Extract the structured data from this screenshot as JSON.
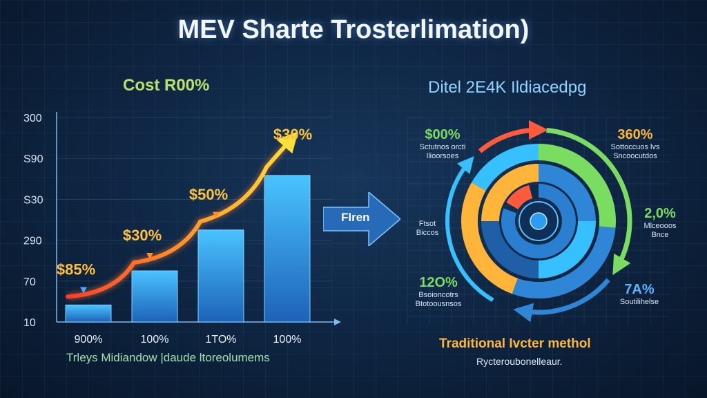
{
  "title": "MEV Sharte Trosterlimation)",
  "left_panel": {
    "subtitle": "Cost R00%",
    "caption": "Trleys Midiandow |daude ltoreolumems"
  },
  "center_arrow": {
    "label": "Flren"
  },
  "right_panel": {
    "subtitle": "Ditel 2E4K Ildiacedpg",
    "caption": "Traditional Ivcter methol",
    "subcaption": "Rycteroubonelleaur.",
    "labels": [
      {
        "pct": "$00%",
        "desc": "Sctutnos orcti\nllioorsoes",
        "color": "#7bdc62"
      },
      {
        "pct": "360%",
        "desc": "Sottoccuos lvs\nSncoocutdos",
        "color": "#ffb43a"
      },
      {
        "pct": "2,0%",
        "desc": "Mlceooos\nBnce",
        "color": "#7bdc62"
      },
      {
        "pct": "7A%",
        "desc": "Soutilihelse",
        "color": "#5ab7ff"
      },
      {
        "pct": "12O%",
        "desc": "Bsoioncotrs\nBtotoousnsos",
        "color": "#7bdc62"
      },
      {
        "pct": "",
        "desc": "Ftsot\nBiccos",
        "color": "#d8e6f5"
      }
    ],
    "ring_colors": [
      "#36c0ff",
      "#ffb43a",
      "#7bdc62",
      "#2f86d6",
      "#ff5a3c"
    ]
  },
  "chart_data": {
    "type": "bar",
    "categories": [
      "900%",
      "100%",
      "1TO%",
      "100%"
    ],
    "series": [
      {
        "values": [
          25,
          75,
          135,
          215
        ]
      }
    ],
    "bar_labels": [
      "$85%",
      "$30%",
      "$50%",
      "$30%"
    ],
    "y_ticks": [
      "10",
      "70",
      "290",
      "S30",
      "S90",
      "300"
    ],
    "ylim": [
      0,
      300
    ],
    "grid": true,
    "trend_line": true,
    "colors": {
      "bar_top": "#49c3ff",
      "bar_bottom": "#1d62b8",
      "label": "#ffc23a",
      "trend_start": "#ff3b2f",
      "trend_end": "#ffe03a"
    }
  }
}
